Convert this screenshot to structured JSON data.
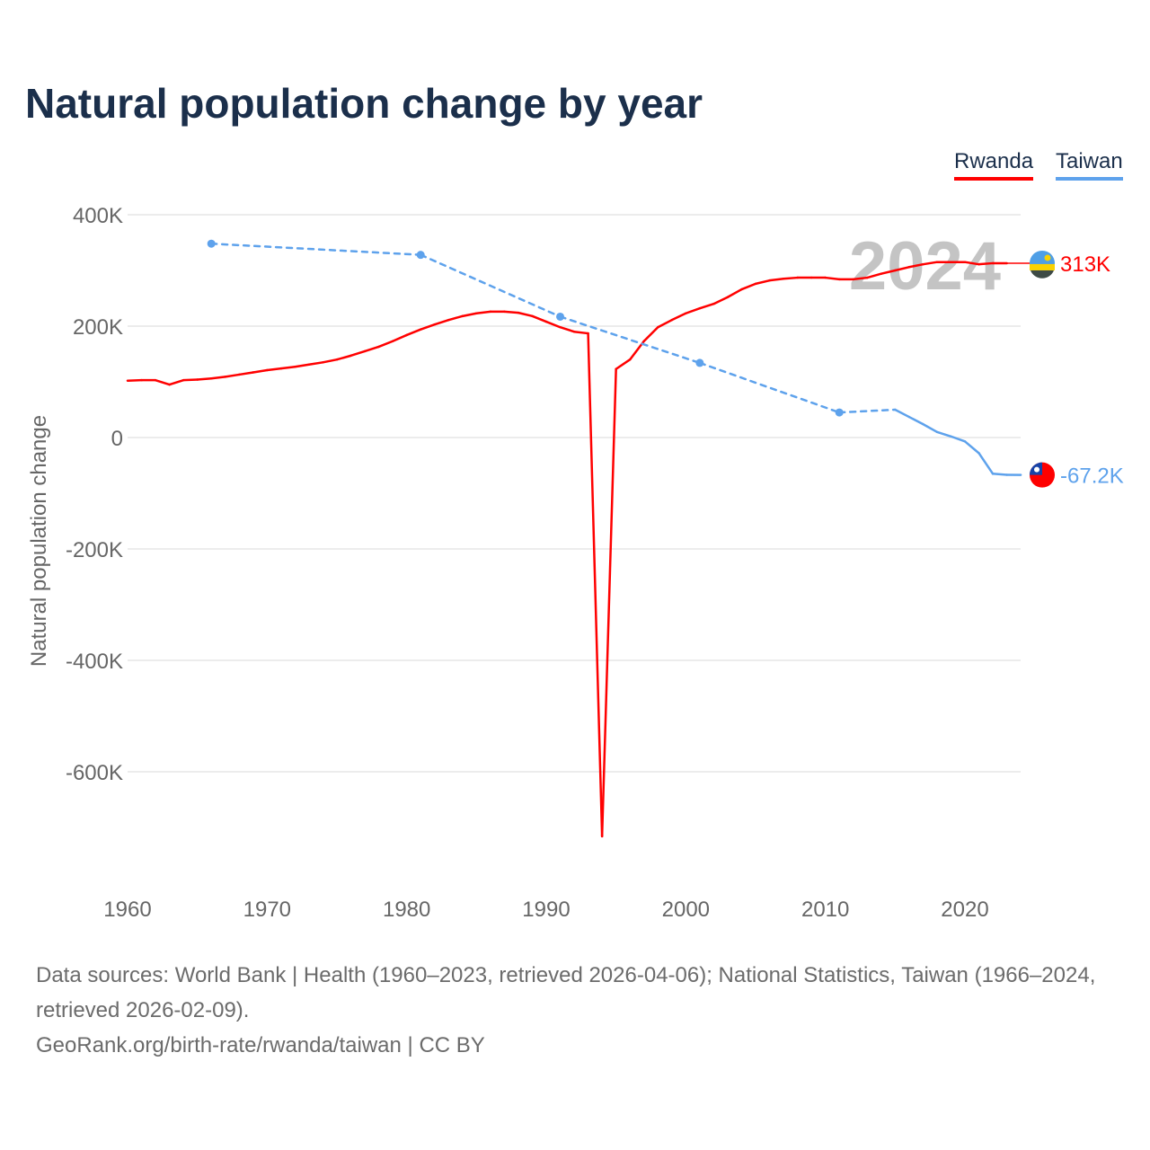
{
  "title": "Natural population change by year",
  "footer": {
    "sources": "Data sources: World Bank | Health (1960–2023, retrieved 2026-04-06); National Statistics, Taiwan (1966–2024, retrieved 2026-02-09).",
    "link": "GeoRank.org/birth-rate/rwanda/taiwan | CC BY"
  },
  "chart_data": {
    "type": "line",
    "title": "Natural population change by year",
    "xlabel": "",
    "ylabel": "Natural population change",
    "xlim": [
      1960,
      2024
    ],
    "ylim": [
      -800000,
      400000
    ],
    "x_ticks": [
      1960,
      1970,
      1980,
      1990,
      2000,
      2010,
      2020
    ],
    "x_tick_labels": [
      "1960",
      "1970",
      "1980",
      "1990",
      "2000",
      "2010",
      "2020"
    ],
    "y_ticks": [
      400000,
      200000,
      0,
      -200000,
      -400000,
      -600000
    ],
    "y_tick_labels": [
      "400K",
      "200K",
      "0",
      "-200K",
      "-400K",
      "-600K"
    ],
    "grid": true,
    "legend": "top-right",
    "year_watermark": "2024",
    "series": [
      {
        "name": "Rwanda",
        "color": "#ff0000",
        "end_label": "313K",
        "flag": "rwanda-flag",
        "x": [
          1960,
          1961,
          1962,
          1963,
          1964,
          1965,
          1966,
          1967,
          1968,
          1969,
          1970,
          1971,
          1972,
          1973,
          1974,
          1975,
          1976,
          1977,
          1978,
          1979,
          1980,
          1981,
          1982,
          1983,
          1984,
          1985,
          1986,
          1987,
          1988,
          1989,
          1990,
          1991,
          1992,
          1993,
          1994,
          1995,
          1996,
          1997,
          1998,
          1999,
          2000,
          2001,
          2002,
          2003,
          2004,
          2005,
          2006,
          2007,
          2008,
          2009,
          2010,
          2011,
          2012,
          2013,
          2014,
          2015,
          2016,
          2017,
          2018,
          2019,
          2020,
          2021,
          2022,
          2023
        ],
        "y": [
          102000,
          103000,
          103000,
          95000,
          103000,
          104000,
          106000,
          109000,
          113000,
          117000,
          121000,
          124000,
          127000,
          131000,
          135000,
          140000,
          147000,
          155000,
          163000,
          173000,
          184000,
          194000,
          203000,
          211000,
          218000,
          223000,
          226000,
          226000,
          224000,
          218000,
          208000,
          198000,
          190000,
          187000,
          -716000,
          123000,
          140000,
          173000,
          198000,
          211000,
          223000,
          232000,
          240000,
          252000,
          266000,
          276000,
          282000,
          285000,
          287000,
          287000,
          287000,
          284000,
          284000,
          287000,
          294000,
          300000,
          306000,
          311000,
          315000,
          315000,
          315000,
          311000,
          313000,
          313000
        ]
      },
      {
        "name": "Taiwan",
        "color": "#5ea2ec",
        "end_label": "-67.2K",
        "flag": "taiwan-flag",
        "x": [
          1966,
          1981,
          1991,
          2001,
          2011,
          2015,
          2016,
          2017,
          2018,
          2019,
          2020,
          2021,
          2022,
          2023,
          2024
        ],
        "y": [
          348000,
          328000,
          217000,
          134000,
          45000,
          50000,
          37000,
          24000,
          10000,
          2000,
          -7000,
          -28000,
          -65000,
          -67000,
          -67200
        ]
      }
    ]
  }
}
